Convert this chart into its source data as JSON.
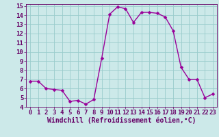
{
  "x": [
    0,
    1,
    2,
    3,
    4,
    5,
    6,
    7,
    8,
    9,
    10,
    11,
    12,
    13,
    14,
    15,
    16,
    17,
    18,
    19,
    20,
    21,
    22,
    23
  ],
  "y": [
    6.8,
    6.8,
    6.0,
    5.9,
    5.8,
    4.6,
    4.7,
    4.3,
    4.8,
    9.3,
    14.1,
    14.9,
    14.7,
    13.2,
    14.3,
    14.3,
    14.2,
    13.8,
    12.3,
    8.3,
    7.0,
    7.0,
    5.0,
    5.4
  ],
  "line_color": "#990099",
  "marker_color": "#990099",
  "bg_color": "#cce9e9",
  "grid_color": "#99cccc",
  "xlabel": "Windchill (Refroidissement éolien,°C)",
  "ylim": [
    4,
    15
  ],
  "xlim": [
    -0.5,
    23.5
  ],
  "yticks": [
    4,
    5,
    6,
    7,
    8,
    9,
    10,
    11,
    12,
    13,
    14,
    15
  ],
  "xticks": [
    0,
    1,
    2,
    3,
    4,
    5,
    6,
    7,
    8,
    9,
    10,
    11,
    12,
    13,
    14,
    15,
    16,
    17,
    18,
    19,
    20,
    21,
    22,
    23
  ],
  "xlabel_fontsize": 7,
  "tick_fontsize": 6.5,
  "line_width": 1.0,
  "marker_size": 2.5,
  "text_color": "#660066"
}
